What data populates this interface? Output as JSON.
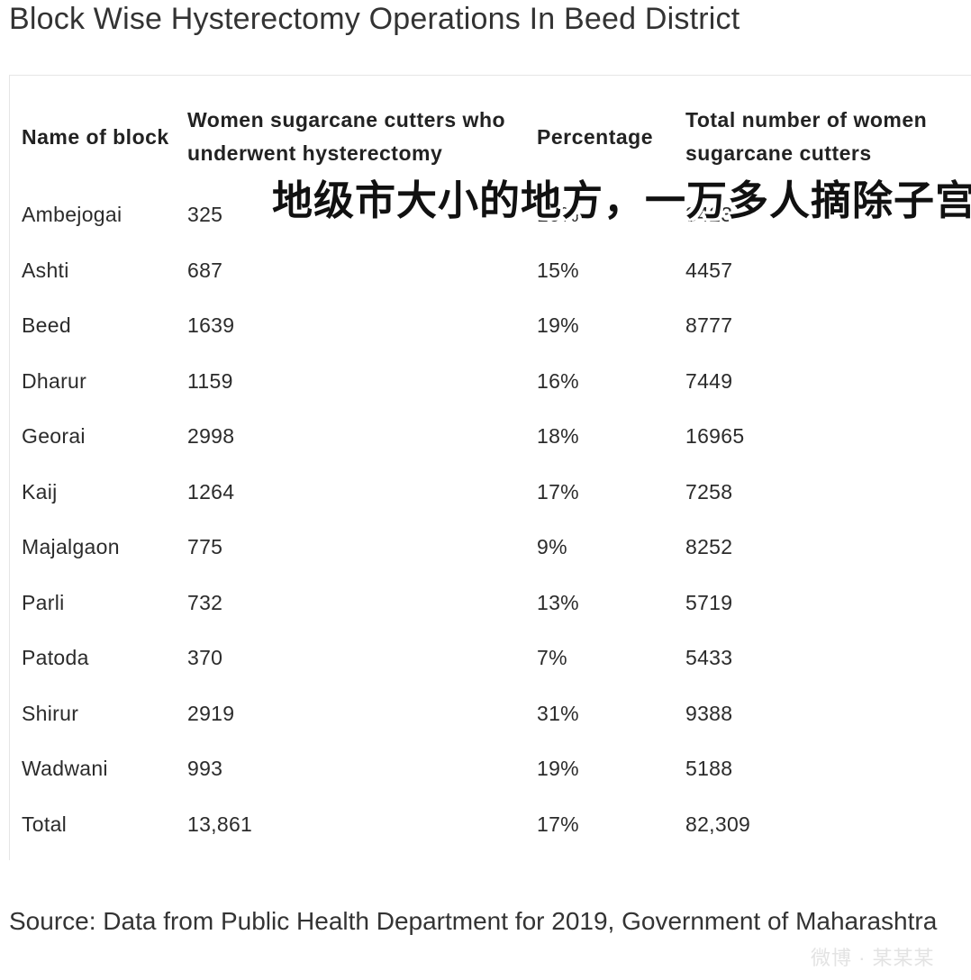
{
  "title": "Block Wise Hysterectomy Operations In Beed District",
  "table": {
    "headers": [
      "Name of block",
      "Women sugarcane cutters who underwent hysterectomy",
      "Percentage",
      "Total number of women sugarcane cutters"
    ],
    "rows": [
      [
        "Ambejogai",
        "325",
        "10%",
        "3423"
      ],
      [
        "Ashti",
        "687",
        "15%",
        "4457"
      ],
      [
        "Beed",
        "1639",
        "19%",
        "8777"
      ],
      [
        "Dharur",
        "1159",
        "16%",
        "7449"
      ],
      [
        "Georai",
        "2998",
        "18%",
        "16965"
      ],
      [
        "Kaij",
        "1264",
        "17%",
        "7258"
      ],
      [
        "Majalgaon",
        "775",
        "9%",
        "8252"
      ],
      [
        "Parli",
        "732",
        "13%",
        "5719"
      ],
      [
        "Patoda",
        "370",
        "7%",
        "5433"
      ],
      [
        "Shirur",
        "2919",
        "31%",
        "9388"
      ],
      [
        "Wadwani",
        "993",
        "19%",
        "5188"
      ],
      [
        "Total",
        "13,861",
        "17%",
        "82,309"
      ]
    ]
  },
  "overlay_caption": "地级市大小的地方，一万多人摘除子宫",
  "source": "Source: Data from Public Health Department for 2019, Government of Maharashtra",
  "watermark": "微博 · 某某某"
}
